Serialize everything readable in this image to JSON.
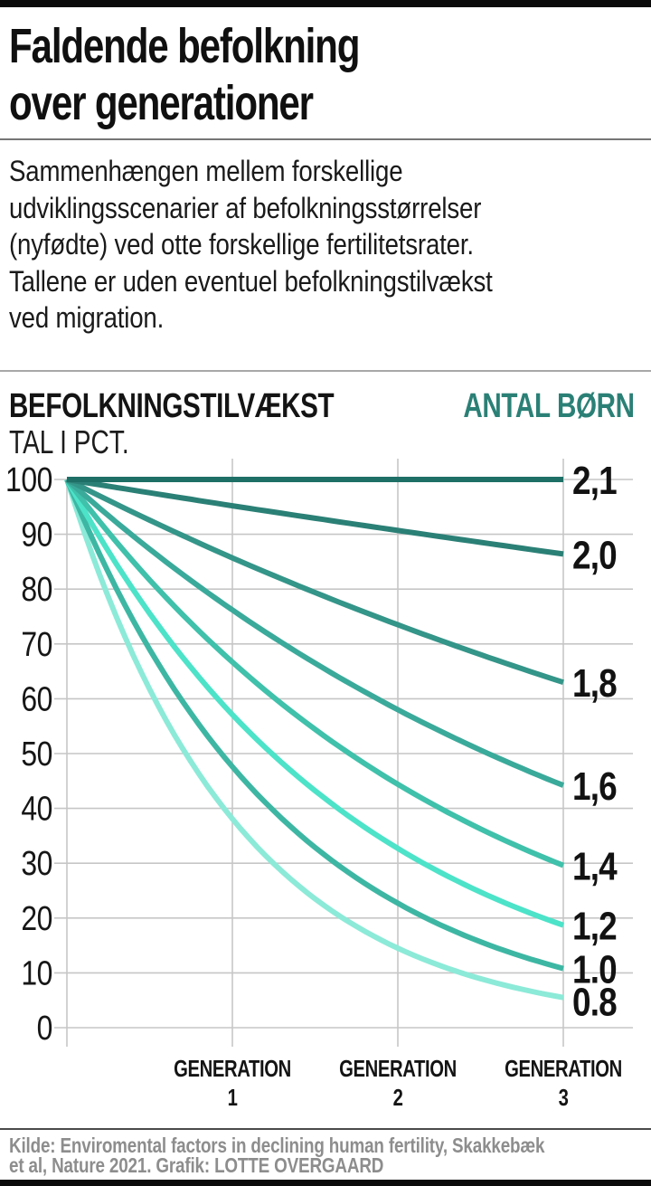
{
  "header": {
    "title": "Faldende befolkning\nover generationer"
  },
  "description": "Sammenhængen mellem forskellige\nudviklingsscenarier af befolkningsstørrelser\n(nyfødte) ved otte forskellige fertilitetsrater.\nTallene er uden eventuel befolkningstilvækst\nved migration.",
  "chart_header": {
    "left_title": "BEFOLKNINGSTILVÆKST",
    "left_subtitle": "TAL I PCT.",
    "right_label": "ANTAL BØRN"
  },
  "chart_data": {
    "type": "line",
    "title": "BEFOLKNINGSTILVÆKST TAL I PCT.",
    "right_axis_label": "ANTAL BØRN",
    "xlabel": "",
    "ylabel": "TAL I PCT.",
    "categories": [
      "GENERATION 1",
      "GENERATION 2",
      "GENERATION 3"
    ],
    "ylim": [
      0,
      100
    ],
    "y_ticks": [
      100,
      90,
      80,
      70,
      60,
      50,
      40,
      30,
      20,
      10,
      0
    ],
    "grid": true,
    "legend_position": "right-end-of-line",
    "series": [
      {
        "name": "2,1",
        "color": "#1e6f66",
        "values": [
          100,
          100,
          100,
          100
        ]
      },
      {
        "name": "2,0",
        "color": "#2b8076",
        "values": [
          100,
          95.2,
          90.7,
          86.4
        ]
      },
      {
        "name": "1,8",
        "color": "#349589",
        "values": [
          100,
          85.7,
          73.5,
          63.0
        ]
      },
      {
        "name": "1,6",
        "color": "#3aaa9b",
        "values": [
          100,
          76.2,
          58.0,
          44.2
        ]
      },
      {
        "name": "1,4",
        "color": "#3fc1ab",
        "values": [
          100,
          66.7,
          44.4,
          29.6
        ]
      },
      {
        "name": "1,2",
        "color": "#4ce3c9",
        "values": [
          100,
          57.1,
          32.7,
          18.7
        ]
      },
      {
        "name": "1.0",
        "color": "#3db7a4",
        "values": [
          100,
          47.6,
          22.7,
          10.8
        ]
      },
      {
        "name": "0.8",
        "color": "#8cead8",
        "values": [
          100,
          38.1,
          14.5,
          5.5
        ]
      }
    ]
  },
  "source": {
    "lines": [
      "Kilde: Enviromental factors in declining human fertility, Skakkebæk",
      "et al, Nature 2021. Grafik: LOTTE OVERGAARD"
    ]
  },
  "colors": {
    "accent_teal": "#2b8076",
    "grid": "#c6c6c6",
    "text": "#141414",
    "source_text": "#8d8d8d",
    "bar": "#0b0b0b"
  }
}
